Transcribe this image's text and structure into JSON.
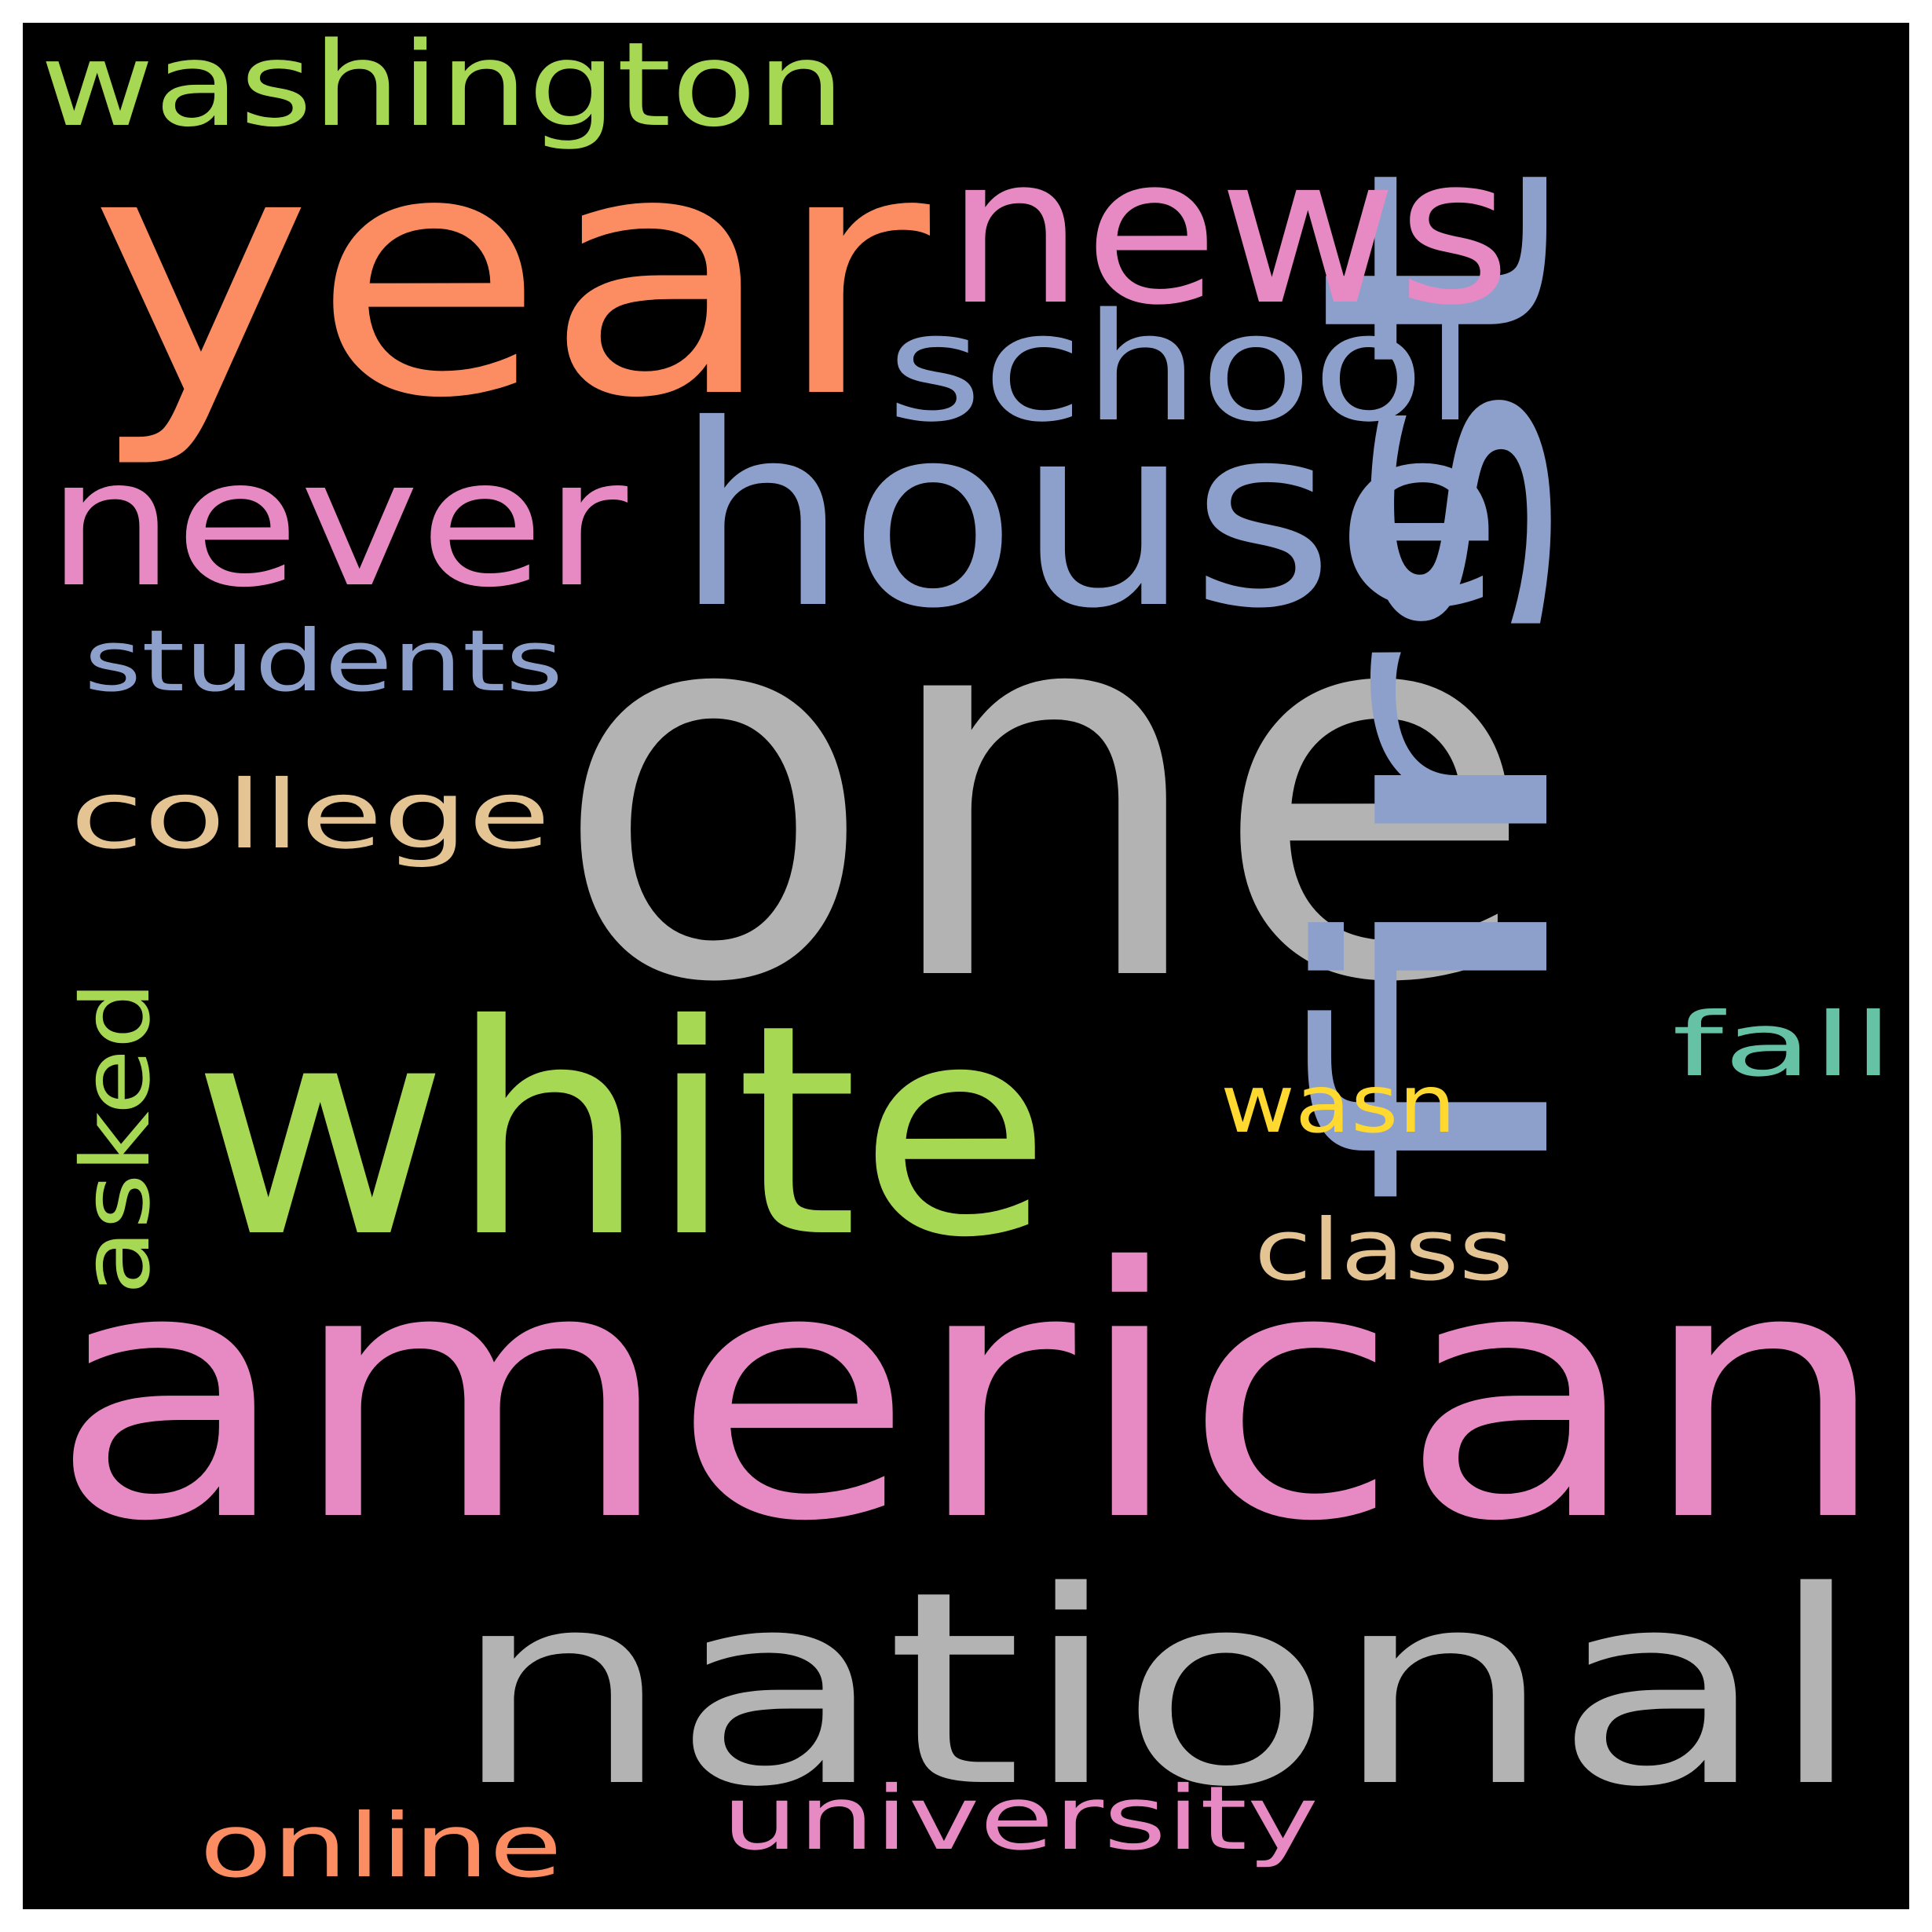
{
  "background_color": "#000000",
  "frame_color": "#ffffff",
  "words": [
    {
      "key": "one",
      "text": "one",
      "color": "#b3b3b3",
      "rotated": false
    },
    {
      "key": "american",
      "text": "american",
      "color": "#e78ac3",
      "rotated": false
    },
    {
      "key": "year",
      "text": "year",
      "color": "#fc8d62",
      "rotated": false
    },
    {
      "key": "first",
      "text": "first",
      "color": "#8da0cb",
      "rotated": true
    },
    {
      "key": "white",
      "text": "white",
      "color": "#a6d854",
      "rotated": false
    },
    {
      "key": "national",
      "text": "national",
      "color": "#b3b3b3",
      "rotated": false
    },
    {
      "key": "house",
      "text": "house",
      "color": "#8da0cb",
      "rotated": false
    },
    {
      "key": "news",
      "text": "news",
      "color": "#e78ac3",
      "rotated": false
    },
    {
      "key": "never",
      "text": "never",
      "color": "#e78ac3",
      "rotated": false
    },
    {
      "key": "school",
      "text": "school",
      "color": "#8da0cb",
      "rotated": false
    },
    {
      "key": "washington",
      "text": "washington",
      "color": "#a6d854",
      "rotated": false
    },
    {
      "key": "college",
      "text": "college",
      "color": "#e5c494",
      "rotated": false
    },
    {
      "key": "students",
      "text": "students",
      "color": "#8da0cb",
      "rotated": false
    },
    {
      "key": "asked",
      "text": "asked",
      "color": "#a6d854",
      "rotated": true
    },
    {
      "key": "university",
      "text": "university",
      "color": "#e78ac3",
      "rotated": false
    },
    {
      "key": "online",
      "text": "online",
      "color": "#fc8d62",
      "rotated": false
    },
    {
      "key": "class",
      "text": "class",
      "color": "#e5c494",
      "rotated": false
    },
    {
      "key": "fall",
      "text": "fall",
      "color": "#66c2a5",
      "rotated": false
    },
    {
      "key": "wasn",
      "text": "wasn",
      "color": "#ffd92f",
      "rotated": false
    }
  ]
}
